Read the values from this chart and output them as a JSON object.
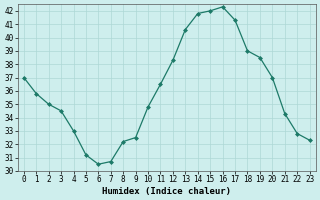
{
  "xlabel": "Humidex (Indice chaleur)",
  "x": [
    0,
    1,
    2,
    3,
    4,
    5,
    6,
    7,
    8,
    9,
    10,
    11,
    12,
    13,
    14,
    15,
    16,
    17,
    18,
    19,
    20,
    21,
    22,
    23
  ],
  "y": [
    37.0,
    35.8,
    35.0,
    34.5,
    33.0,
    31.2,
    30.5,
    30.7,
    32.2,
    32.5,
    34.8,
    36.5,
    38.3,
    40.6,
    41.8,
    42.0,
    42.3,
    41.3,
    39.0,
    38.5,
    37.0,
    34.3,
    32.8,
    32.3
  ],
  "line_color": "#1d7a68",
  "marker": "D",
  "marker_size": 2.0,
  "background_color": "#ceeeed",
  "grid_color": "#aed8d5",
  "ylim": [
    30,
    42.5
  ],
  "yticks": [
    30,
    31,
    32,
    33,
    34,
    35,
    36,
    37,
    38,
    39,
    40,
    41,
    42
  ],
  "xticks": [
    0,
    1,
    2,
    3,
    4,
    5,
    6,
    7,
    8,
    9,
    10,
    11,
    12,
    13,
    14,
    15,
    16,
    17,
    18,
    19,
    20,
    21,
    22,
    23
  ],
  "tick_fontsize": 5.5,
  "xlabel_fontsize": 6.5,
  "spine_color": "#555555",
  "xlim": [
    -0.5,
    23.5
  ]
}
